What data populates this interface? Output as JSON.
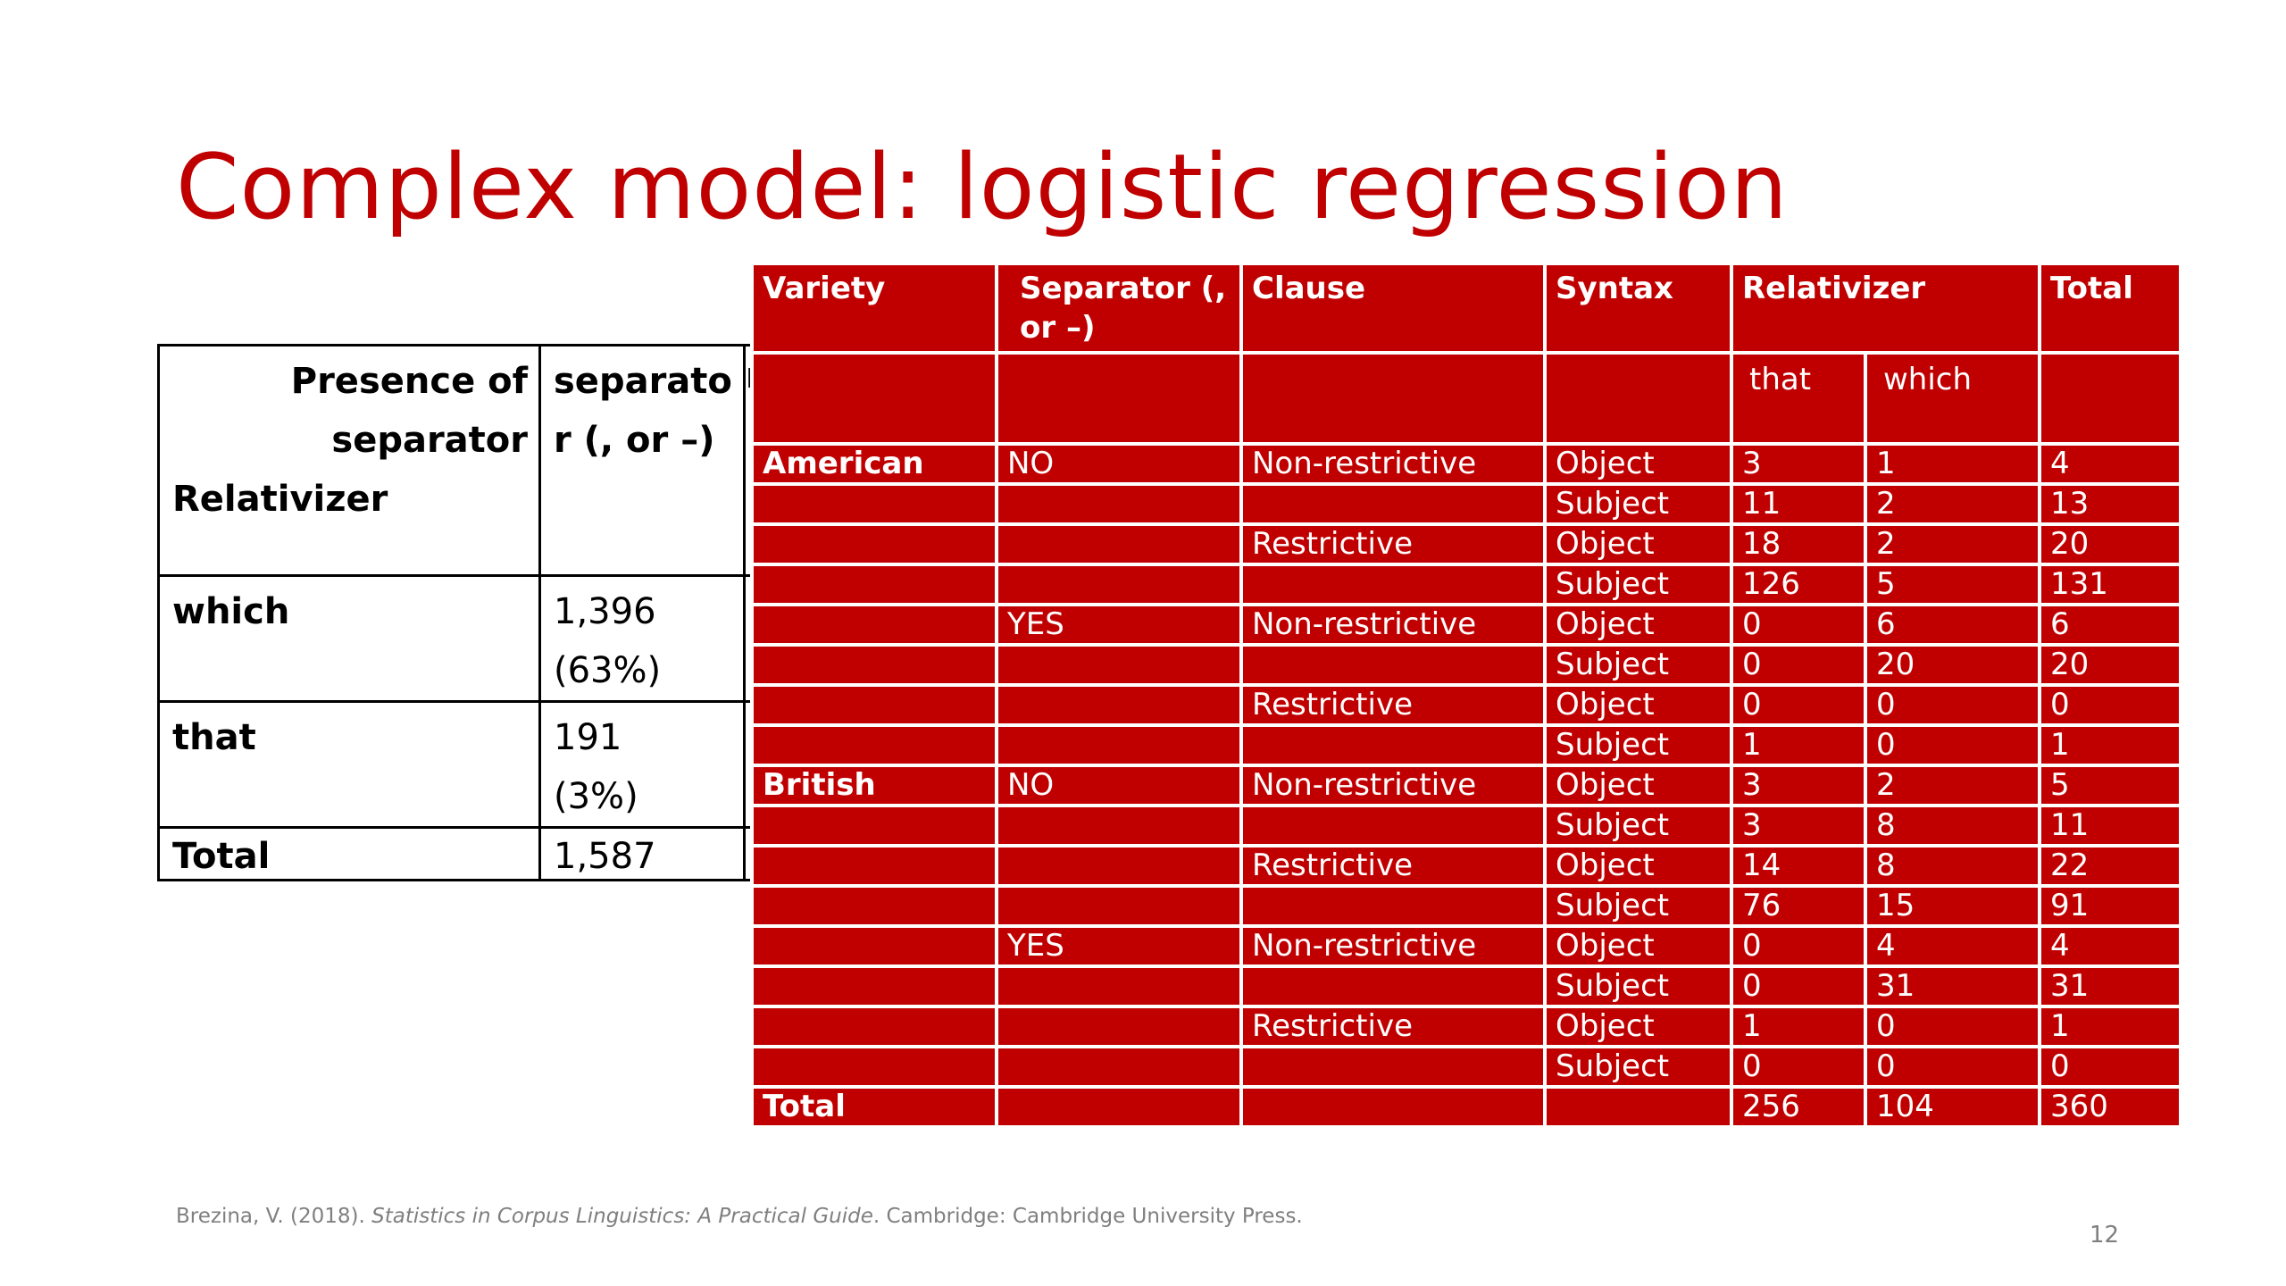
{
  "slide": {
    "title": "Complex model: logistic regression",
    "page_number": "12"
  },
  "citation": {
    "prefix": "Brezina, V. (2018). ",
    "book": "Statistics in Corpus Linguistics: A Practical Guide",
    "suffix": ". Cambridge: Cambridge University Press."
  },
  "left_table": {
    "header_col1_line1": "Presence of",
    "header_col1_line2": "separator",
    "header_col1_line3": "Relativizer",
    "header_col2": "separato r (, or –)",
    "header_col3_stub": "r",
    "rows": [
      {
        "label": "which",
        "value": "1,396",
        "pct": "(63%)"
      },
      {
        "label": "that",
        "value": "191",
        "pct": "(3%)"
      },
      {
        "label": "Total",
        "value": "1,587",
        "pct": ""
      }
    ]
  },
  "red_table": {
    "headers": [
      "Variety",
      "Separator (, or –)",
      "Clause",
      "Syntax",
      "Relativizer",
      "Total"
    ],
    "subheaders": [
      "that",
      "which"
    ],
    "rows": [
      [
        "American",
        "NO",
        "Non-restrictive",
        "Object",
        "3",
        "1",
        "4"
      ],
      [
        "",
        "",
        "",
        "Subject",
        "11",
        "2",
        "13"
      ],
      [
        "",
        "",
        "Restrictive",
        "Object",
        "18",
        "2",
        "20"
      ],
      [
        "",
        "",
        "",
        "Subject",
        "126",
        "5",
        "131"
      ],
      [
        "",
        "YES",
        "Non-restrictive",
        "Object",
        "0",
        "6",
        "6"
      ],
      [
        "",
        "",
        "",
        "Subject",
        "0",
        "20",
        "20"
      ],
      [
        "",
        "",
        "Restrictive",
        "Object",
        "0",
        "0",
        "0"
      ],
      [
        "",
        "",
        "",
        "Subject",
        "1",
        "0",
        "1"
      ],
      [
        "British",
        "NO",
        "Non-restrictive",
        "Object",
        "3",
        "2",
        "5"
      ],
      [
        "",
        "",
        "",
        "Subject",
        "3",
        "8",
        "11"
      ],
      [
        "",
        "",
        "Restrictive",
        "Object",
        "14",
        "8",
        "22"
      ],
      [
        "",
        "",
        "",
        "Subject",
        "76",
        "15",
        "91"
      ],
      [
        "",
        "YES",
        "Non-restrictive",
        "Object",
        "0",
        "4",
        "4"
      ],
      [
        "",
        "",
        "",
        "Subject",
        "0",
        "31",
        "31"
      ],
      [
        "",
        "",
        "Restrictive",
        "Object",
        "1",
        "0",
        "1"
      ],
      [
        "",
        "",
        "",
        "Subject",
        "0",
        "0",
        "0"
      ]
    ],
    "total_row": [
      "Total",
      "",
      "",
      "",
      "256",
      "104",
      "360"
    ]
  }
}
